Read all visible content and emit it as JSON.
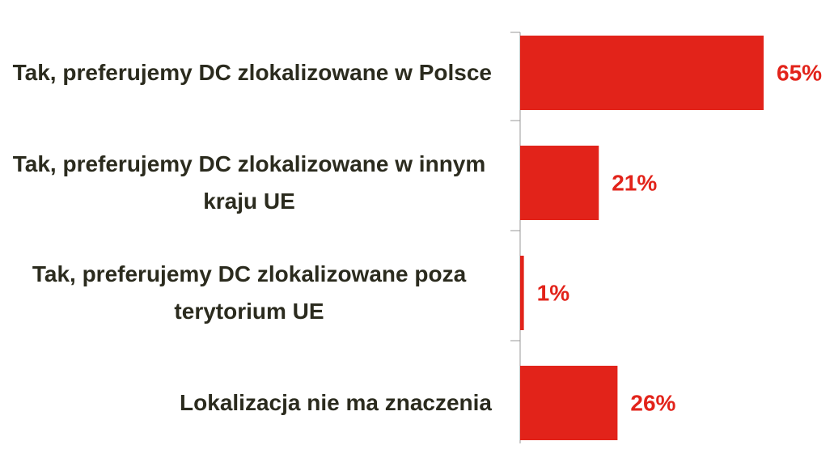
{
  "chart_data": {
    "type": "bar",
    "orientation": "horizontal",
    "categories": [
      "Tak, preferujemy DC zlokalizowane w Polsce",
      "Tak, preferujemy DC zlokalizowane w innym kraju UE",
      "Tak, preferujemy DC zlokalizowane poza terytorium UE",
      "Lokalizacja nie ma znaczenia"
    ],
    "values": [
      65,
      21,
      1,
      26
    ],
    "value_labels": [
      "65%",
      "21%",
      "1%",
      "26%"
    ],
    "color": "#e2231a"
  }
}
